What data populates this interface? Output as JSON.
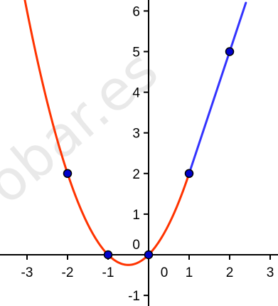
{
  "chart_data": {
    "type": "line",
    "title": "",
    "xlabel": "",
    "ylabel": "",
    "xlim": [
      -3.35,
      3.25
    ],
    "ylim": [
      -1.35,
      6.15
    ],
    "x_ticks": [
      -3,
      -2,
      -1,
      0,
      1,
      2,
      3
    ],
    "y_ticks": [
      -1,
      0,
      1,
      2,
      3,
      4,
      5,
      6
    ],
    "grid": false,
    "watermark_text": "obar.es",
    "series": [
      {
        "function": "y = x^2 + x",
        "domain": [
          -3.35,
          1
        ],
        "color": "#ff3300",
        "labeled_points": [
          [
            -2,
            2
          ],
          [
            -1,
            0
          ],
          [
            0,
            0
          ],
          [
            1,
            2
          ]
        ]
      },
      {
        "function": "y = 3x - 1",
        "domain": [
          1,
          2.4
        ],
        "color": "#3333ff",
        "labeled_points": [
          [
            1,
            2
          ],
          [
            2,
            5
          ]
        ]
      }
    ],
    "points": [
      [
        -2,
        2
      ],
      [
        -1,
        0
      ],
      [
        0,
        0
      ],
      [
        1,
        2
      ],
      [
        2,
        5
      ]
    ],
    "point_color": "#0000cc"
  }
}
